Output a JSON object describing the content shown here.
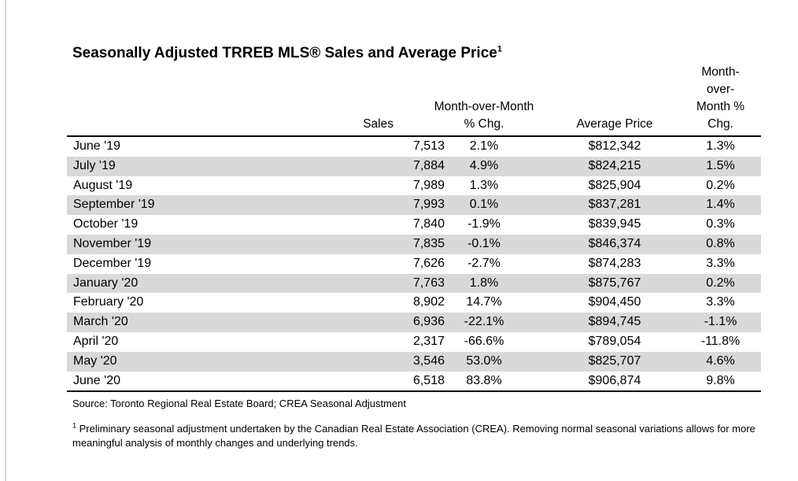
{
  "title": "Seasonally Adjusted TRREB MLS® Sales and Average Price",
  "title_footnote_mark": "1",
  "headers": {
    "sales": "Sales",
    "mom_line1": "Month-over-Month",
    "mom_line2": "% Chg.",
    "avg_price": "Average Price",
    "momp_line1": "Month-",
    "momp_line2": "over-",
    "momp_line3": "Month %",
    "momp_line4": "Chg."
  },
  "chart_data": {
    "type": "table",
    "title": "Seasonally Adjusted TRREB MLS® Sales and Average Price",
    "columns": [
      "",
      "Sales",
      "Month-over-Month % Chg.",
      "Average Price",
      "Month-over-Month % Chg."
    ],
    "rows": [
      [
        "June '19",
        "7,513",
        "2.1%",
        "$812,342",
        "1.3%"
      ],
      [
        "July '19",
        "7,884",
        "4.9%",
        "$824,215",
        "1.5%"
      ],
      [
        "August '19",
        "7,989",
        "1.3%",
        "$825,904",
        "0.2%"
      ],
      [
        "September '19",
        "7,993",
        "0.1%",
        "$837,281",
        "1.4%"
      ],
      [
        "October '19",
        "7,840",
        "-1.9%",
        "$839,945",
        "0.3%"
      ],
      [
        "November '19",
        "7,835",
        "-0.1%",
        "$846,374",
        "0.8%"
      ],
      [
        "December '19",
        "7,626",
        "-2.7%",
        "$874,283",
        "3.3%"
      ],
      [
        "January '20",
        "7,763",
        "1.8%",
        "$875,767",
        "0.2%"
      ],
      [
        "February '20",
        "8,902",
        "14.7%",
        "$904,450",
        "3.3%"
      ],
      [
        "March '20",
        "6,936",
        "-22.1%",
        "$894,745",
        "-1.1%"
      ],
      [
        "April '20",
        "2,317",
        "-66.6%",
        "$789,054",
        "-11.8%"
      ],
      [
        "May '20",
        "3,546",
        "53.0%",
        "$825,707",
        "4.6%"
      ],
      [
        "June '20",
        "6,518",
        "83.8%",
        "$906,874",
        "9.8%"
      ]
    ]
  },
  "source": "Source: Toronto Regional Real Estate Board; CREA Seasonal Adjustment",
  "footnote_mark": "1",
  "footnote": " Preliminary seasonal adjustment undertaken by the Canadian Real Estate Association (CREA).  Removing normal seasonal variations allows for more meaningful analysis of monthly changes and underlying trends.",
  "colors": {
    "row_shade": "#d9d9d9",
    "rule": "#000000"
  }
}
